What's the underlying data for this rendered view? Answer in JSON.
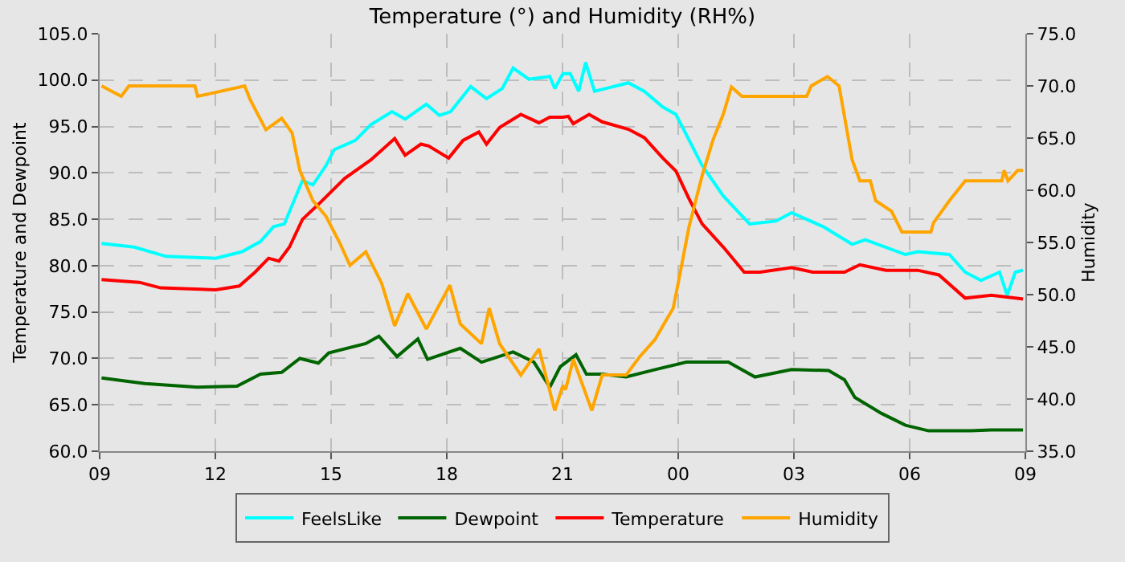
{
  "chart_data": {
    "type": "line",
    "title": "Temperature (°) and Humidity (RH%)",
    "ylabel": "Temperature and Dewpoint",
    "y2label": "Humidity",
    "xlim": [
      9,
      33
    ],
    "xticks": [
      {
        "value": 9,
        "label": "09"
      },
      {
        "value": 12,
        "label": "12"
      },
      {
        "value": 15,
        "label": "15"
      },
      {
        "value": 18,
        "label": "18"
      },
      {
        "value": 21,
        "label": "21"
      },
      {
        "value": 24,
        "label": "00"
      },
      {
        "value": 27,
        "label": "03"
      },
      {
        "value": 30,
        "label": "06"
      },
      {
        "value": 33,
        "label": "09"
      }
    ],
    "ylim": [
      60,
      105
    ],
    "yticks": [
      {
        "value": 60,
        "label": "60.0"
      },
      {
        "value": 65,
        "label": "65.0"
      },
      {
        "value": 70,
        "label": "70.0"
      },
      {
        "value": 75,
        "label": "75.0"
      },
      {
        "value": 80,
        "label": "80.0"
      },
      {
        "value": 85,
        "label": "85.0"
      },
      {
        "value": 90,
        "label": "90.0"
      },
      {
        "value": 95,
        "label": "95.0"
      },
      {
        "value": 100,
        "label": "100.0"
      },
      {
        "value": 105,
        "label": "105.0"
      }
    ],
    "y2lim": [
      35,
      75
    ],
    "y2ticks": [
      {
        "value": 35,
        "label": "35.0"
      },
      {
        "value": 40,
        "label": "40.0"
      },
      {
        "value": 45,
        "label": "45.0"
      },
      {
        "value": 50,
        "label": "50.0"
      },
      {
        "value": 55,
        "label": "55.0"
      },
      {
        "value": 60,
        "label": "60.0"
      },
      {
        "value": 65,
        "label": "65.0"
      },
      {
        "value": 70,
        "label": "70.0"
      },
      {
        "value": 75,
        "label": "75.0"
      }
    ],
    "grid": true,
    "legend": "bottom",
    "line_style": "solid",
    "series": [
      {
        "name": "FeelsLike",
        "color": "#00ffff",
        "x": [
          9.05,
          9.9,
          10.72,
          12.01,
          12.69,
          13.17,
          13.51,
          13.79,
          14.26,
          14.53,
          14.87,
          15.08,
          15.63,
          16.03,
          16.58,
          16.92,
          17.47,
          17.81,
          18.1,
          18.62,
          19.03,
          19.44,
          19.72,
          20.13,
          20.67,
          20.8,
          21.01,
          21.2,
          21.42,
          21.6,
          21.83,
          22.71,
          23.12,
          23.6,
          23.94,
          24.62,
          25.17,
          25.85,
          26.53,
          26.94,
          27.76,
          28.51,
          28.85,
          29.89,
          30.21,
          31.03,
          31.44,
          31.85,
          32.33,
          32.53,
          32.74,
          32.94
        ],
        "values": [
          82.4,
          82.0,
          81.0,
          80.8,
          81.5,
          82.6,
          84.2,
          84.5,
          89.2,
          88.7,
          90.8,
          92.5,
          93.5,
          95.2,
          96.6,
          95.8,
          97.4,
          96.2,
          96.6,
          99.3,
          98.0,
          99.1,
          101.3,
          100.1,
          100.4,
          99.1,
          100.7,
          100.7,
          98.8,
          101.9,
          98.8,
          99.7,
          98.8,
          97.1,
          96.3,
          90.8,
          87.5,
          84.5,
          84.8,
          85.7,
          84.2,
          82.3,
          82.8,
          81.2,
          81.5,
          81.2,
          79.3,
          78.4,
          79.3,
          76.8,
          79.3,
          79.5
        ]
      },
      {
        "name": "Dewpoint",
        "color": "#006400",
        "x": [
          9.05,
          10.17,
          11.53,
          12.56,
          13.17,
          13.72,
          14.19,
          14.67,
          14.94,
          15.9,
          16.24,
          16.71,
          17.25,
          17.5,
          18.35,
          18.9,
          19.72,
          20.26,
          20.67,
          20.94,
          21.35,
          21.62,
          22.03,
          22.65,
          23.4,
          24.21,
          25.3,
          25.99,
          26.94,
          27.9,
          28.31,
          28.58,
          29.26,
          29.89,
          30.49,
          31.58,
          32.12,
          32.94
        ],
        "values": [
          67.9,
          67.3,
          66.9,
          67.0,
          68.3,
          68.5,
          70.0,
          69.5,
          70.6,
          71.6,
          72.4,
          70.2,
          72.1,
          69.9,
          71.1,
          69.6,
          70.7,
          69.6,
          66.9,
          69.1,
          70.4,
          68.3,
          68.3,
          68.0,
          68.8,
          69.6,
          69.6,
          68.0,
          68.8,
          68.7,
          67.7,
          65.8,
          64.1,
          62.8,
          62.2,
          62.2,
          62.3,
          62.3
        ]
      },
      {
        "name": "Temperature",
        "color": "#ff0000",
        "x": [
          9.05,
          10.03,
          10.58,
          12.01,
          12.62,
          13.03,
          13.38,
          13.65,
          13.92,
          14.26,
          14.67,
          15.35,
          16.03,
          16.65,
          16.92,
          17.33,
          17.53,
          18.05,
          18.42,
          18.83,
          19.03,
          19.37,
          19.92,
          20.39,
          20.67,
          21.01,
          21.15,
          21.28,
          21.69,
          22.03,
          22.71,
          23.12,
          23.6,
          23.94,
          24.28,
          24.62,
          25.17,
          25.71,
          26.12,
          26.94,
          27.49,
          28.31,
          28.71,
          29.39,
          30.21,
          30.76,
          31.44,
          32.12,
          32.94
        ],
        "values": [
          78.5,
          78.2,
          77.6,
          77.4,
          77.8,
          79.3,
          80.8,
          80.5,
          82.0,
          85.0,
          86.6,
          89.4,
          91.4,
          93.7,
          91.9,
          93.1,
          92.9,
          91.6,
          93.5,
          94.4,
          93.1,
          94.9,
          96.3,
          95.4,
          96.0,
          96.0,
          96.1,
          95.3,
          96.3,
          95.5,
          94.7,
          93.8,
          91.6,
          90.2,
          87.2,
          84.5,
          82.0,
          79.3,
          79.3,
          79.8,
          79.3,
          79.3,
          80.1,
          79.5,
          79.5,
          79.0,
          76.5,
          76.8,
          76.4
        ]
      },
      {
        "name": "Humidity",
        "color": "#ffa500",
        "axis": "y2",
        "x": [
          9.05,
          9.56,
          9.76,
          11.47,
          11.54,
          12.76,
          12.9,
          13.31,
          13.72,
          13.99,
          14.19,
          14.53,
          14.87,
          15.22,
          15.49,
          15.9,
          16.31,
          16.65,
          16.99,
          17.47,
          18.08,
          18.35,
          18.9,
          19.1,
          19.37,
          19.92,
          20.39,
          20.8,
          21.01,
          21.08,
          21.28,
          21.76,
          22.03,
          22.65,
          22.99,
          23.4,
          23.6,
          23.87,
          24.0,
          24.28,
          24.62,
          24.9,
          25.17,
          25.38,
          25.65,
          25.92,
          27.33,
          27.45,
          27.87,
          28.17,
          28.51,
          28.71,
          28.98,
          29.12,
          29.53,
          29.8,
          30.55,
          30.62,
          31.03,
          31.44,
          32.39,
          32.45,
          32.55,
          32.8,
          32.94
        ],
        "values": [
          70.0,
          69.0,
          70.0,
          70.0,
          69.0,
          70.0,
          68.7,
          65.8,
          66.9,
          65.5,
          61.9,
          59.0,
          57.5,
          55.0,
          52.8,
          54.1,
          51.1,
          47.0,
          50.1,
          46.7,
          50.9,
          47.2,
          45.3,
          48.7,
          45.3,
          42.3,
          44.8,
          38.9,
          41.3,
          40.9,
          43.8,
          38.9,
          42.3,
          42.3,
          44.0,
          45.7,
          47.0,
          48.7,
          51.1,
          56.5,
          61.4,
          64.8,
          67.3,
          69.9,
          69.0,
          69.0,
          69.0,
          70.0,
          70.9,
          70.0,
          62.9,
          60.9,
          60.9,
          59.0,
          58.0,
          56.0,
          56.0,
          56.9,
          59.0,
          60.9,
          60.9,
          61.9,
          60.9,
          61.9,
          61.9
        ]
      }
    ]
  }
}
